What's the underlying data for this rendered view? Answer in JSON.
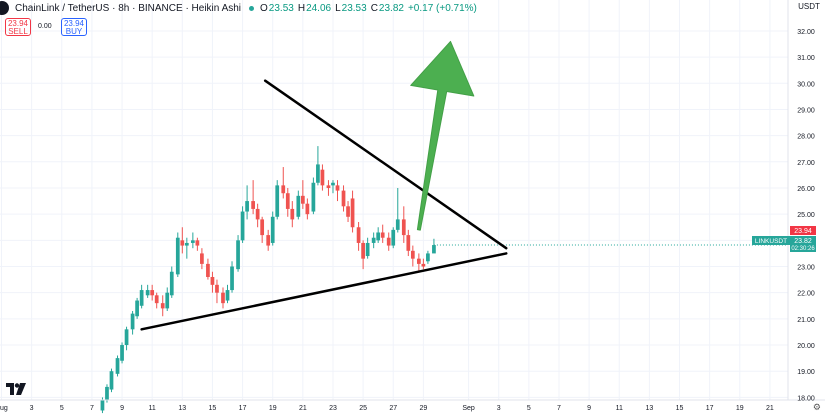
{
  "legend": {
    "symbol": "ChainLink / TetherUS · 8h · BINANCE · Heikin Ashi",
    "open_label": "O",
    "open": "23.53",
    "high_label": "H",
    "high": "24.06",
    "low_label": "L",
    "low": "23.53",
    "close_label": "C",
    "close": "23.82",
    "change": "+0.17 (+0.71%)"
  },
  "trade": {
    "sell_price": "23.94",
    "sell_label": "SELL",
    "buy_price": "23.94",
    "buy_label": "BUY",
    "spread": "0.00"
  },
  "currency": "USDT",
  "price_labels": {
    "ask": "23.94",
    "ticker": "LINKUSDT",
    "last": "23.82",
    "countdown": "02:30:26"
  },
  "colors": {
    "up": "#26a69a",
    "down": "#ef5350",
    "trendline": "#000000",
    "arrow": "#4caf50",
    "ask_tag": "#f23645"
  },
  "icons": {
    "logo": "tradingview-logo",
    "settings": "gear-icon"
  },
  "chart_data": {
    "type": "candlestick",
    "title": "ChainLink / TetherUS · 8h · BINANCE · Heikin Ashi",
    "y_axis": {
      "ticks": [
        "18.00",
        "19.00",
        "20.00",
        "21.00",
        "22.00",
        "23.00",
        "24.00",
        "25.00",
        "26.00",
        "27.00",
        "28.00",
        "29.00",
        "30.00",
        "31.00",
        "32.00"
      ],
      "range": [
        17.9,
        32.8
      ]
    },
    "x_axis": {
      "ticks": [
        "Aug",
        "3",
        "5",
        "7",
        "9",
        "11",
        "13",
        "15",
        "17",
        "19",
        "21",
        "23",
        "25",
        "27",
        "29",
        "Sep",
        "3",
        "5",
        "7",
        "9",
        "11",
        "13",
        "15",
        "17",
        "19",
        "21"
      ],
      "tick_days": [
        1,
        3,
        5,
        7,
        9,
        11,
        13,
        15,
        17,
        19,
        21,
        23,
        25,
        27,
        29,
        32,
        34,
        36,
        38,
        40,
        42,
        44,
        46,
        48,
        50,
        52
      ]
    },
    "grid": true,
    "candles": [
      {
        "day": 7.7,
        "o": 17.5,
        "h": 18.0,
        "l": 17.4,
        "c": 17.9
      },
      {
        "day": 8.0,
        "o": 17.9,
        "h": 18.5,
        "l": 17.8,
        "c": 18.4
      },
      {
        "day": 8.3,
        "o": 18.3,
        "h": 19.1,
        "l": 18.2,
        "c": 19.0
      },
      {
        "day": 8.7,
        "o": 18.9,
        "h": 19.6,
        "l": 18.8,
        "c": 19.5
      },
      {
        "day": 9.0,
        "o": 19.4,
        "h": 20.1,
        "l": 19.3,
        "c": 20.0
      },
      {
        "day": 9.3,
        "o": 20.0,
        "h": 20.7,
        "l": 19.8,
        "c": 20.6
      },
      {
        "day": 9.7,
        "o": 20.6,
        "h": 21.3,
        "l": 20.4,
        "c": 21.2
      },
      {
        "day": 10.0,
        "o": 21.1,
        "h": 21.8,
        "l": 21.0,
        "c": 21.7
      },
      {
        "day": 10.3,
        "o": 21.5,
        "h": 22.3,
        "l": 21.4,
        "c": 22.1
      },
      {
        "day": 10.7,
        "o": 21.9,
        "h": 22.3,
        "l": 21.8,
        "c": 22.1
      },
      {
        "day": 11.0,
        "o": 22.1,
        "h": 22.3,
        "l": 21.7,
        "c": 21.9
      },
      {
        "day": 11.3,
        "o": 21.9,
        "h": 22.0,
        "l": 21.4,
        "c": 21.6
      },
      {
        "day": 11.7,
        "o": 21.6,
        "h": 21.9,
        "l": 21.1,
        "c": 21.4
      },
      {
        "day": 12.0,
        "o": 21.4,
        "h": 22.2,
        "l": 21.3,
        "c": 22.0
      },
      {
        "day": 12.3,
        "o": 21.9,
        "h": 23.0,
        "l": 21.8,
        "c": 22.8
      },
      {
        "day": 12.7,
        "o": 22.7,
        "h": 24.3,
        "l": 22.6,
        "c": 24.1
      },
      {
        "day": 13.0,
        "o": 24.0,
        "h": 24.5,
        "l": 23.5,
        "c": 23.8
      },
      {
        "day": 13.3,
        "o": 23.8,
        "h": 24.1,
        "l": 23.3,
        "c": 23.9
      },
      {
        "day": 13.7,
        "o": 23.9,
        "h": 24.3,
        "l": 23.7,
        "c": 24.0
      },
      {
        "day": 14.0,
        "o": 24.0,
        "h": 24.1,
        "l": 23.6,
        "c": 23.8
      },
      {
        "day": 14.3,
        "o": 23.5,
        "h": 23.7,
        "l": 22.9,
        "c": 23.1
      },
      {
        "day": 14.7,
        "o": 23.1,
        "h": 23.3,
        "l": 22.5,
        "c": 22.6
      },
      {
        "day": 15.0,
        "o": 22.6,
        "h": 22.8,
        "l": 22.0,
        "c": 22.3
      },
      {
        "day": 15.3,
        "o": 22.3,
        "h": 22.5,
        "l": 21.6,
        "c": 22.0
      },
      {
        "day": 15.7,
        "o": 22.0,
        "h": 22.2,
        "l": 21.4,
        "c": 21.6
      },
      {
        "day": 16.0,
        "o": 21.7,
        "h": 22.3,
        "l": 21.6,
        "c": 22.1
      },
      {
        "day": 16.3,
        "o": 22.1,
        "h": 23.2,
        "l": 22.0,
        "c": 23.0
      },
      {
        "day": 16.7,
        "o": 22.9,
        "h": 24.2,
        "l": 22.8,
        "c": 24.0
      },
      {
        "day": 17.0,
        "o": 24.0,
        "h": 25.3,
        "l": 23.9,
        "c": 25.1
      },
      {
        "day": 17.3,
        "o": 25.1,
        "h": 26.1,
        "l": 24.8,
        "c": 25.5
      },
      {
        "day": 17.7,
        "o": 25.5,
        "h": 26.3,
        "l": 25.0,
        "c": 25.2
      },
      {
        "day": 18.0,
        "o": 25.2,
        "h": 25.4,
        "l": 24.5,
        "c": 24.8
      },
      {
        "day": 18.3,
        "o": 24.8,
        "h": 24.9,
        "l": 23.9,
        "c": 24.2
      },
      {
        "day": 18.7,
        "o": 24.2,
        "h": 24.4,
        "l": 23.6,
        "c": 23.8
      },
      {
        "day": 19.0,
        "o": 23.9,
        "h": 25.1,
        "l": 23.8,
        "c": 24.9
      },
      {
        "day": 19.3,
        "o": 24.9,
        "h": 26.3,
        "l": 24.8,
        "c": 26.1
      },
      {
        "day": 19.7,
        "o": 26.1,
        "h": 26.8,
        "l": 25.6,
        "c": 25.8
      },
      {
        "day": 20.0,
        "o": 25.8,
        "h": 26.0,
        "l": 24.9,
        "c": 25.2
      },
      {
        "day": 20.3,
        "o": 25.2,
        "h": 25.5,
        "l": 24.5,
        "c": 24.8
      },
      {
        "day": 20.7,
        "o": 24.9,
        "h": 25.9,
        "l": 24.8,
        "c": 25.7
      },
      {
        "day": 21.0,
        "o": 25.7,
        "h": 26.3,
        "l": 25.2,
        "c": 25.4
      },
      {
        "day": 21.3,
        "o": 25.4,
        "h": 25.6,
        "l": 24.8,
        "c": 25.0
      },
      {
        "day": 21.7,
        "o": 25.1,
        "h": 26.4,
        "l": 25.0,
        "c": 26.2
      },
      {
        "day": 22.0,
        "o": 26.2,
        "h": 27.6,
        "l": 26.1,
        "c": 26.9
      },
      {
        "day": 22.3,
        "o": 26.7,
        "h": 26.9,
        "l": 25.9,
        "c": 26.1
      },
      {
        "day": 22.7,
        "o": 26.1,
        "h": 26.3,
        "l": 25.7,
        "c": 26.0
      },
      {
        "day": 23.0,
        "o": 26.1,
        "h": 26.3,
        "l": 25.8,
        "c": 26.2
      },
      {
        "day": 23.3,
        "o": 26.1,
        "h": 26.3,
        "l": 25.5,
        "c": 25.9
      },
      {
        "day": 23.7,
        "o": 25.9,
        "h": 26.1,
        "l": 25.1,
        "c": 25.3
      },
      {
        "day": 24.0,
        "o": 25.3,
        "h": 25.5,
        "l": 24.7,
        "c": 24.9
      },
      {
        "day": 24.3,
        "o": 25.6,
        "h": 25.9,
        "l": 24.3,
        "c": 24.5
      },
      {
        "day": 24.7,
        "o": 24.5,
        "h": 24.7,
        "l": 23.6,
        "c": 23.9
      },
      {
        "day": 25.0,
        "o": 23.9,
        "h": 24.0,
        "l": 22.9,
        "c": 23.3
      },
      {
        "day": 25.3,
        "o": 23.4,
        "h": 24.1,
        "l": 23.3,
        "c": 23.9
      },
      {
        "day": 25.7,
        "o": 23.9,
        "h": 24.3,
        "l": 23.7,
        "c": 24.1
      },
      {
        "day": 26.0,
        "o": 24.0,
        "h": 24.5,
        "l": 23.9,
        "c": 24.3
      },
      {
        "day": 26.3,
        "o": 24.3,
        "h": 24.6,
        "l": 23.9,
        "c": 24.1
      },
      {
        "day": 26.7,
        "o": 24.1,
        "h": 24.3,
        "l": 23.6,
        "c": 23.8
      },
      {
        "day": 27.0,
        "o": 23.8,
        "h": 24.5,
        "l": 23.7,
        "c": 24.4
      },
      {
        "day": 27.3,
        "o": 24.4,
        "h": 26.0,
        "l": 24.3,
        "c": 24.8
      },
      {
        "day": 27.7,
        "o": 24.8,
        "h": 25.3,
        "l": 23.9,
        "c": 24.2
      },
      {
        "day": 28.0,
        "o": 24.2,
        "h": 24.4,
        "l": 23.4,
        "c": 23.6
      },
      {
        "day": 28.3,
        "o": 23.6,
        "h": 23.8,
        "l": 23.0,
        "c": 23.3
      },
      {
        "day": 28.7,
        "o": 23.3,
        "h": 23.5,
        "l": 22.8,
        "c": 23.1
      },
      {
        "day": 29.0,
        "o": 23.1,
        "h": 23.3,
        "l": 22.9,
        "c": 23.0
      },
      {
        "day": 29.3,
        "o": 23.2,
        "h": 23.6,
        "l": 23.1,
        "c": 23.5
      },
      {
        "day": 29.7,
        "o": 23.5,
        "h": 24.06,
        "l": 23.53,
        "c": 23.82
      }
    ],
    "annotations": {
      "upper_trendline": {
        "start": {
          "day": 18.5,
          "price": 30.1
        },
        "end": {
          "day": 34.5,
          "price": 23.7
        }
      },
      "lower_trendline": {
        "start": {
          "day": 10.3,
          "price": 20.6
        },
        "end": {
          "day": 34.5,
          "price": 23.5
        }
      },
      "arrow": {
        "start": {
          "day": 28.7,
          "price": 24.4
        },
        "head": {
          "day": 30.8,
          "price": 31.6
        }
      }
    }
  }
}
